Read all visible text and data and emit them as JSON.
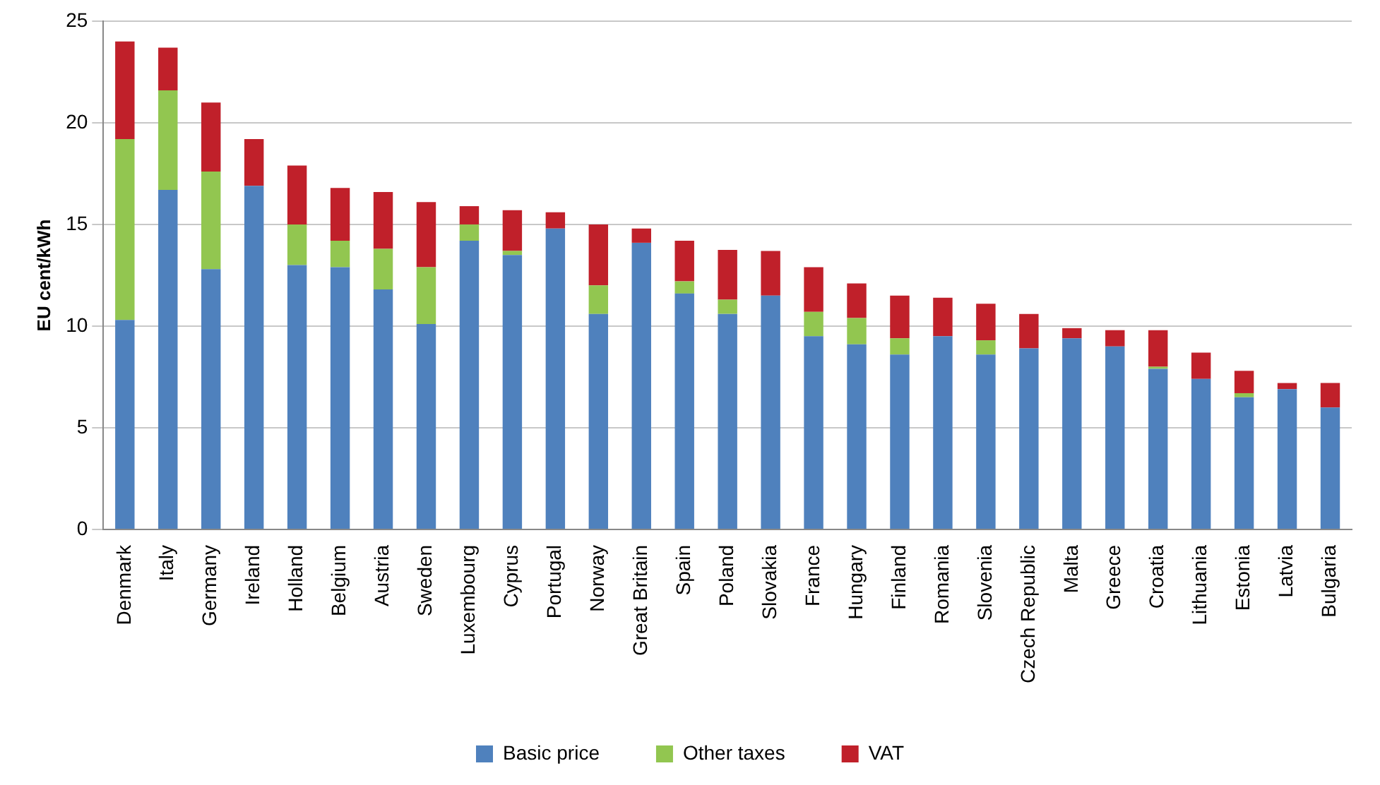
{
  "chart_data": {
    "type": "bar",
    "stacked": true,
    "ylabel": "EU cent/kWh",
    "categories": [
      "Denmark",
      "Italy",
      "Germany",
      "Ireland",
      "Holland",
      "Belgium",
      "Austria",
      "Sweden",
      "Luxembourg",
      "Cyprus",
      "Portugal",
      "Norway",
      "Great Britain",
      "Spain",
      "Poland",
      "Slovakia",
      "France",
      "Hungary",
      "Finland",
      "Romania",
      "Slovenia",
      "Czech Republic",
      "Malta",
      "Greece",
      "Croatia",
      "Lithuania",
      "Estonia",
      "Latvia",
      "Bulgaria"
    ],
    "series": [
      {
        "name": "Basic price",
        "color": "#4f81bd",
        "values": [
          10.3,
          16.7,
          12.8,
          16.9,
          13.0,
          12.9,
          11.8,
          10.1,
          14.2,
          13.5,
          14.8,
          10.6,
          14.1,
          11.6,
          10.6,
          11.5,
          9.5,
          9.1,
          8.6,
          9.5,
          8.6,
          8.9,
          9.4,
          9.0,
          7.9,
          7.4,
          6.5,
          6.9,
          6.0
        ]
      },
      {
        "name": "Other taxes",
        "color": "#92c650",
        "values": [
          8.9,
          4.9,
          4.8,
          0,
          2.0,
          1.3,
          2.0,
          2.8,
          0.8,
          0.2,
          0,
          1.4,
          0,
          0.6,
          0.7,
          0,
          1.2,
          1.3,
          0.8,
          0,
          0.7,
          0,
          0,
          0,
          0.1,
          0,
          0.2,
          0,
          0
        ]
      },
      {
        "name": "VAT",
        "color": "#c0202a",
        "values": [
          4.8,
          2.1,
          3.4,
          2.3,
          2.9,
          2.6,
          2.8,
          3.2,
          0.9,
          2.0,
          0.8,
          3.0,
          0.7,
          2.0,
          2.45,
          2.2,
          2.2,
          1.7,
          2.1,
          1.9,
          1.8,
          1.7,
          0.5,
          0.8,
          1.8,
          1.3,
          1.1,
          0.3,
          1.2
        ]
      }
    ],
    "ylim": [
      0,
      25
    ],
    "yticks": [
      0,
      5,
      10,
      15,
      20,
      25
    ],
    "grid": "y",
    "legend": "bottom"
  }
}
